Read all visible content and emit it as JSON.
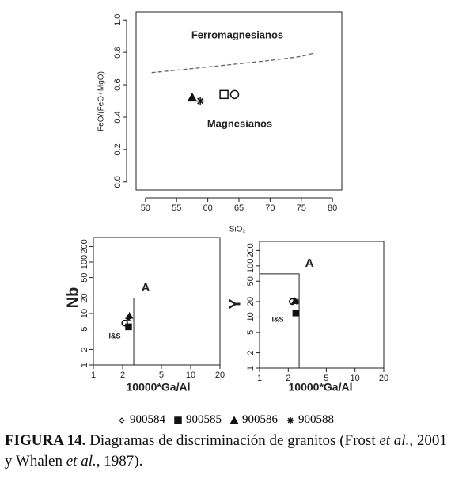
{
  "chart_data": [
    {
      "type": "scatter",
      "log": false,
      "xlabel": "SiO₂",
      "ylabel": "FeO/(FeO+MgO)",
      "xlim": [
        48.5,
        81.5
      ],
      "ylim": [
        -0.05,
        1.05
      ],
      "xticks": [
        50,
        55,
        60,
        65,
        70,
        75,
        80
      ],
      "yticks": [
        {
          "value": 0,
          "label": "0.0"
        },
        0.2,
        0.4,
        0.6,
        0.8,
        {
          "value": 1,
          "label": "1.0"
        }
      ],
      "annotations": [
        "Ferromagnesianos",
        "Magnesianos"
      ],
      "lines": [
        {
          "dash": true,
          "x": [
            51,
            55,
            60,
            65,
            70,
            75,
            77
          ],
          "y": [
            0.675,
            0.69,
            0.71,
            0.73,
            0.75,
            0.775,
            0.795
          ]
        }
      ],
      "series": [
        {
          "marker": "triangle",
          "filled": true,
          "x": [
            57.5
          ],
          "y": [
            0.52
          ]
        },
        {
          "marker": "asterisk",
          "filled": false,
          "x": [
            58.8
          ],
          "y": [
            0.5
          ]
        },
        {
          "marker": "square",
          "filled": false,
          "x": [
            62.6
          ],
          "y": [
            0.54
          ]
        },
        {
          "marker": "circle",
          "filled": false,
          "x": [
            64.3
          ],
          "y": [
            0.54
          ]
        }
      ]
    },
    {
      "type": "scatter",
      "log": true,
      "xlabel": "10000*Ga/Al",
      "ylabel": "Nb",
      "xlim": [
        1,
        20
      ],
      "ylim": [
        1,
        300
      ],
      "xticks": [
        1,
        2,
        5,
        10,
        20
      ],
      "yticks": [
        1,
        2,
        5,
        10,
        20,
        50,
        100,
        200
      ],
      "annotations": [
        "A",
        "I&S"
      ],
      "lines": [
        {
          "dash": false,
          "x": [
            1,
            2.6,
            2.6
          ],
          "y": [
            20,
            20,
            1
          ]
        }
      ],
      "series": [
        {
          "marker": "circle",
          "filled": false,
          "x": [
            2.1
          ],
          "y": [
            6.5
          ]
        },
        {
          "marker": "square",
          "filled": true,
          "x": [
            2.3
          ],
          "y": [
            5.5
          ]
        },
        {
          "marker": "triangle",
          "filled": true,
          "x": [
            2.35
          ],
          "y": [
            9
          ]
        },
        {
          "marker": "asterisk",
          "filled": false,
          "x": [
            2.28
          ],
          "y": [
            8
          ]
        }
      ]
    },
    {
      "type": "scatter",
      "log": true,
      "xlabel": "10000*Ga/Al",
      "ylabel": "Y",
      "xlim": [
        1,
        20
      ],
      "ylim": [
        1,
        300
      ],
      "xticks": [
        1,
        2,
        5,
        10,
        20
      ],
      "yticks": [
        1,
        2,
        5,
        10,
        20,
        50,
        100,
        200
      ],
      "annotations": [
        "A",
        "I&S"
      ],
      "lines": [
        {
          "dash": false,
          "x": [
            1,
            2.6,
            2.6
          ],
          "y": [
            70,
            70,
            1
          ]
        }
      ],
      "series": [
        {
          "marker": "circle",
          "filled": false,
          "x": [
            2.2
          ],
          "y": [
            20
          ]
        },
        {
          "marker": "square",
          "filled": true,
          "x": [
            2.4
          ],
          "y": [
            12
          ]
        },
        {
          "marker": "triangle",
          "filled": true,
          "x": [
            2.35
          ],
          "y": [
            20.5
          ]
        },
        {
          "marker": "asterisk",
          "filled": false,
          "x": [
            2.45
          ],
          "y": [
            20
          ]
        }
      ]
    }
  ],
  "legend": [
    {
      "name": "900584",
      "marker": "diamond",
      "filled": false
    },
    {
      "name": "900585",
      "marker": "square",
      "filled": true
    },
    {
      "name": "900586",
      "marker": "triangle",
      "filled": true
    },
    {
      "name": "900588",
      "marker": "asterisk",
      "filled": false
    }
  ],
  "caption": [
    {
      "text": "FIGURA 14.",
      "bold": true
    },
    {
      "text": " Diagramas de discriminación de granitos (Frost "
    },
    {
      "text": "et al.",
      "italic": true
    },
    {
      "text": ", 2001 y Whalen "
    },
    {
      "text": "et al.",
      "italic": true
    },
    {
      "text": ", 1987)."
    }
  ]
}
